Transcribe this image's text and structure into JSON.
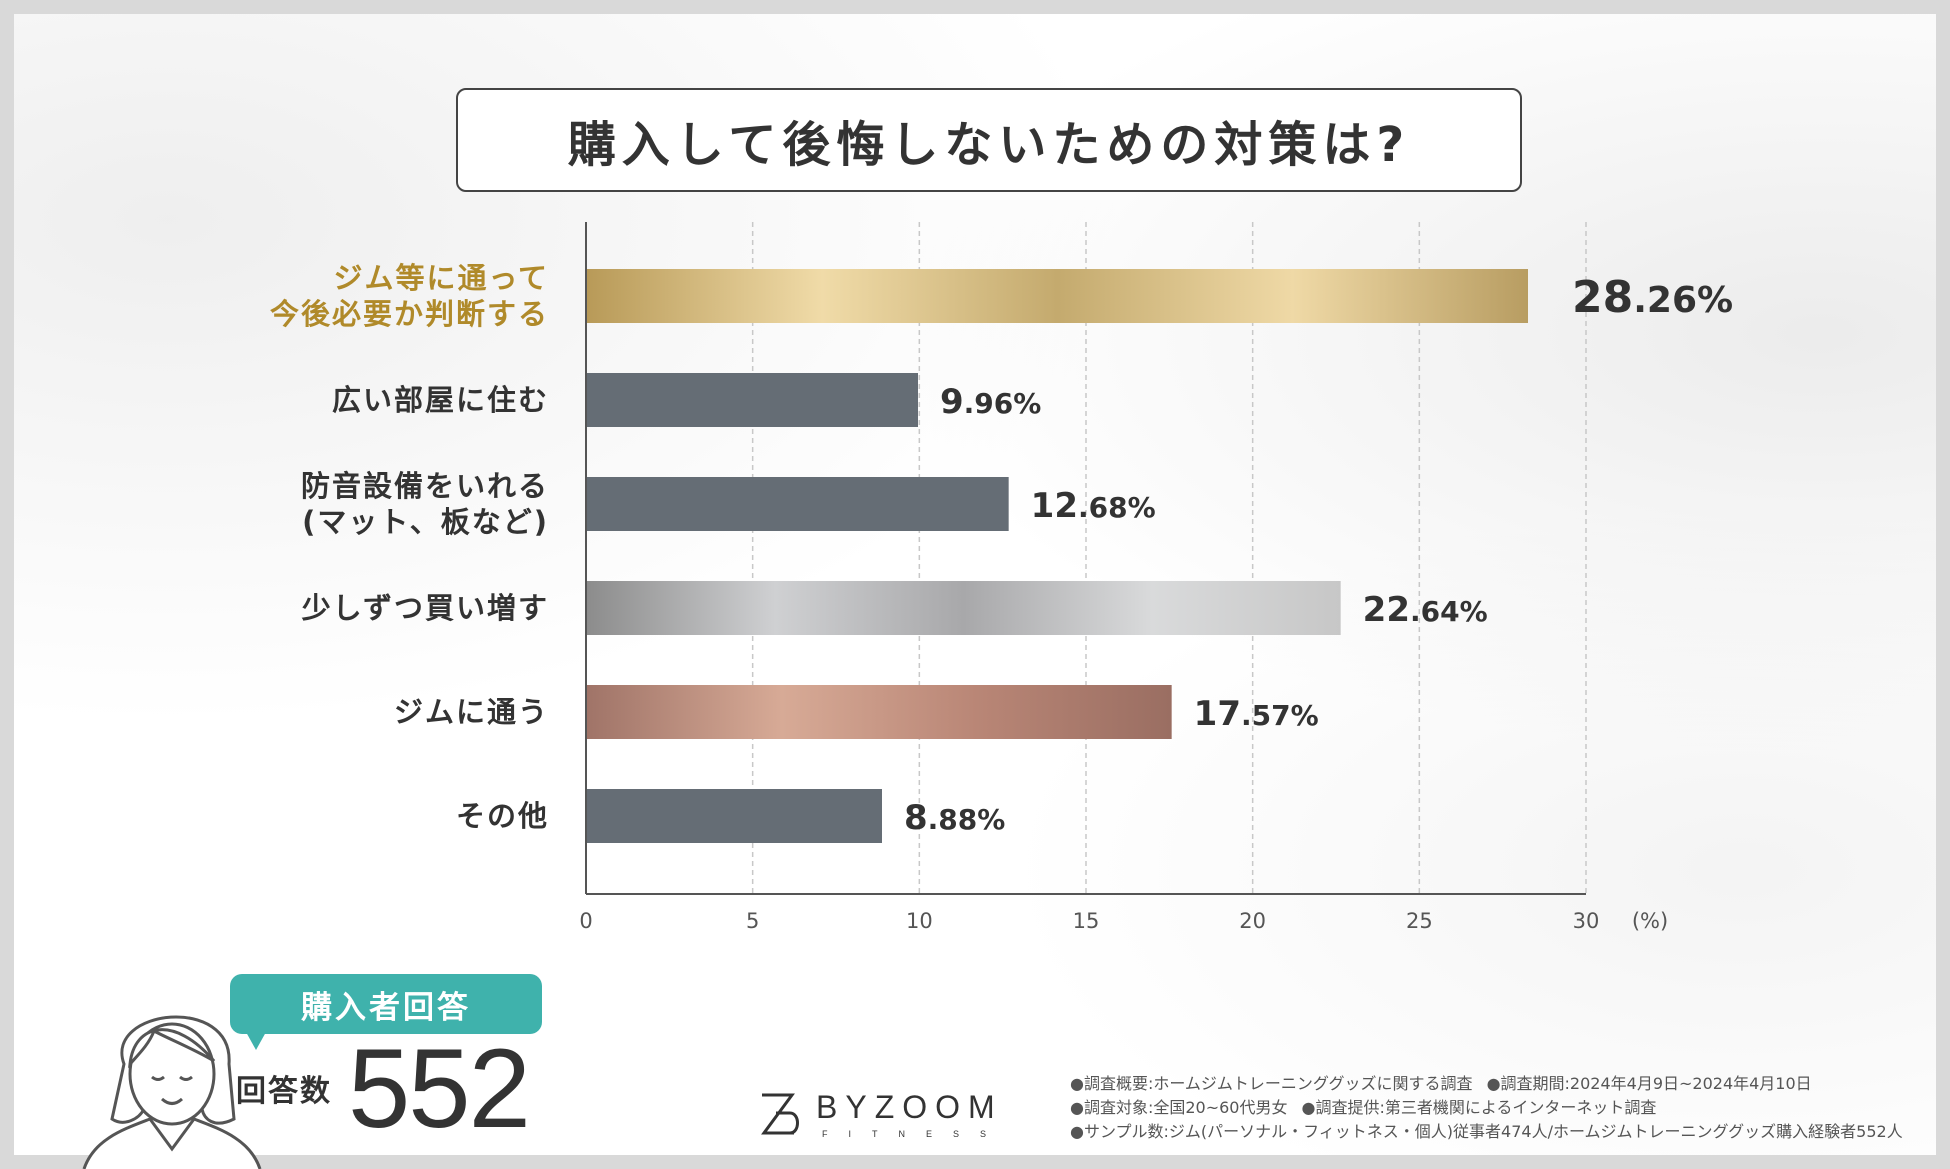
{
  "title": "購入して後悔しないための対策は?",
  "chart_data": {
    "type": "bar",
    "orientation": "horizontal",
    "title": "購入して後悔しないための対策は?",
    "categories": [
      [
        "ジム等に通って",
        "今後必要か判断する"
      ],
      [
        "広い部屋に住む"
      ],
      [
        "防音設備をいれる",
        "(マット、板など)"
      ],
      [
        "少しずつ買い増す"
      ],
      [
        "ジムに通う"
      ],
      [
        "その他"
      ]
    ],
    "values": [
      28.26,
      9.96,
      12.68,
      22.64,
      17.57,
      8.88
    ],
    "value_labels": [
      {
        "int": "28",
        "dec": ".26%"
      },
      {
        "int": "9",
        "dec": ".96%"
      },
      {
        "int": "12",
        "dec": ".68%"
      },
      {
        "int": "22",
        "dec": ".64%"
      },
      {
        "int": "17",
        "dec": ".57%"
      },
      {
        "int": "8",
        "dec": ".88%"
      }
    ],
    "bar_styles": [
      "gold",
      "dark",
      "dark",
      "silver",
      "bronze",
      "dark"
    ],
    "xlim": [
      0,
      30
    ],
    "xticks": [
      0,
      5,
      10,
      15,
      20,
      25,
      30
    ],
    "xunit": "(%)",
    "grid": true,
    "colors": {
      "dark": "#656d75",
      "gold_label": "#b08a2a",
      "gold": [
        "#b89a58",
        "#f0dba8",
        "#c4aa6e",
        "#efd9a6",
        "#b89d62"
      ],
      "silver": [
        "#8c8c8c",
        "#cfd0d2",
        "#a8a8aa",
        "#d9dadb",
        "#c7c7c7"
      ],
      "bronze": [
        "#a07468",
        "#d7aa96",
        "#b98676",
        "#9a6e62"
      ]
    }
  },
  "respondent": {
    "badge": "購入者回答",
    "count_label": "回答数",
    "count": "552"
  },
  "logo": {
    "name": "BYZOOM",
    "sub": "FITNESS"
  },
  "notes": {
    "overview": "●調査概要:ホームジムトレーニンググッズに関する調査",
    "period": "●調査期間:2024年4月9日~2024年4月10日",
    "target": "●調査対象:全国20~60代男女",
    "provider": "●調査提供:第三者機関によるインターネット調査",
    "sample": "●サンプル数:ジム(パーソナル・フィットネス・個人)従事者474人/ホームジムトレーニンググッズ購入経験者552人"
  }
}
